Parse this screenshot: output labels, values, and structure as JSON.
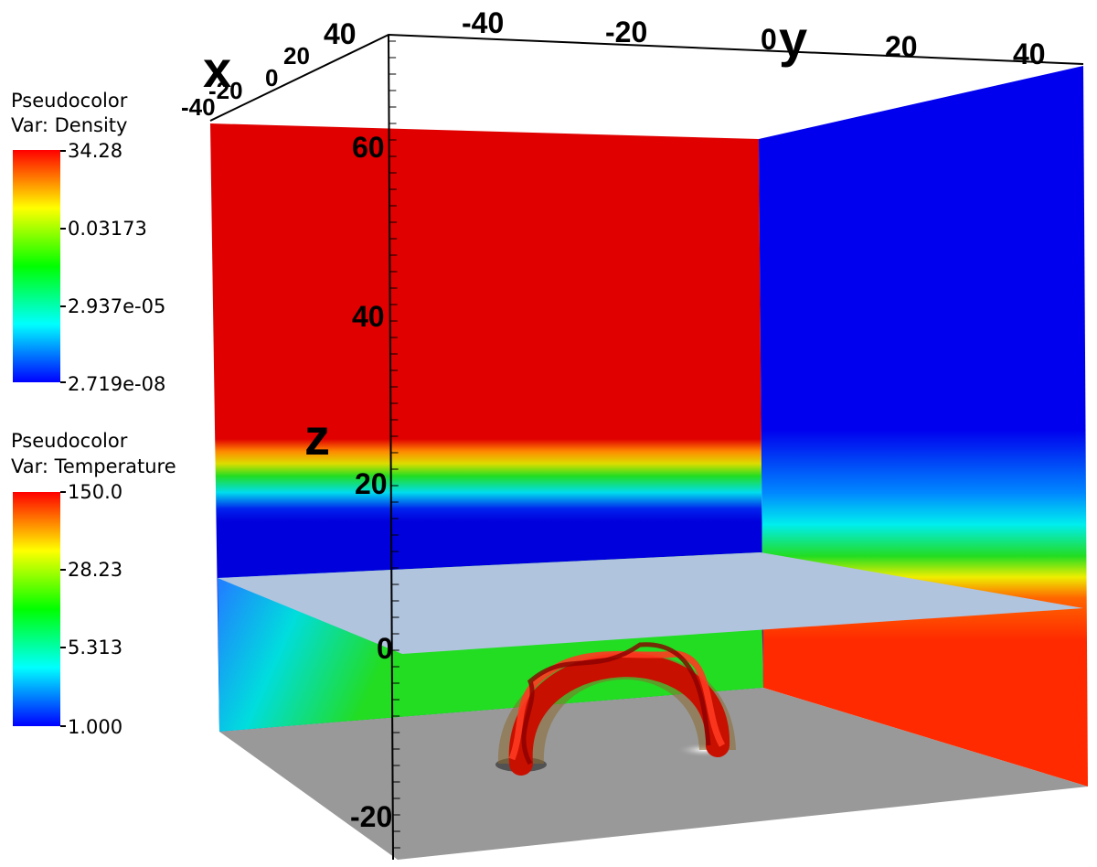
{
  "legends": [
    {
      "title": "Pseudocolor",
      "variable": "Var: Density",
      "labels": [
        "34.28",
        "0.03173",
        "2.937e-05",
        "2.719e-08"
      ]
    },
    {
      "title": "Pseudocolor",
      "variable": "Var: Temperature",
      "labels": [
        "150.0",
        "28.23",
        "5.313",
        "1.000"
      ]
    }
  ],
  "axes": {
    "x": {
      "title": "x",
      "ticks": [
        "-40",
        "-20",
        "0",
        "20",
        "40"
      ]
    },
    "y": {
      "title": "y",
      "ticks": [
        "-40",
        "-20",
        "0",
        "20",
        "40"
      ]
    },
    "z": {
      "title": "z",
      "ticks": [
        "60",
        "40",
        "20",
        "0",
        "-20"
      ]
    }
  }
}
